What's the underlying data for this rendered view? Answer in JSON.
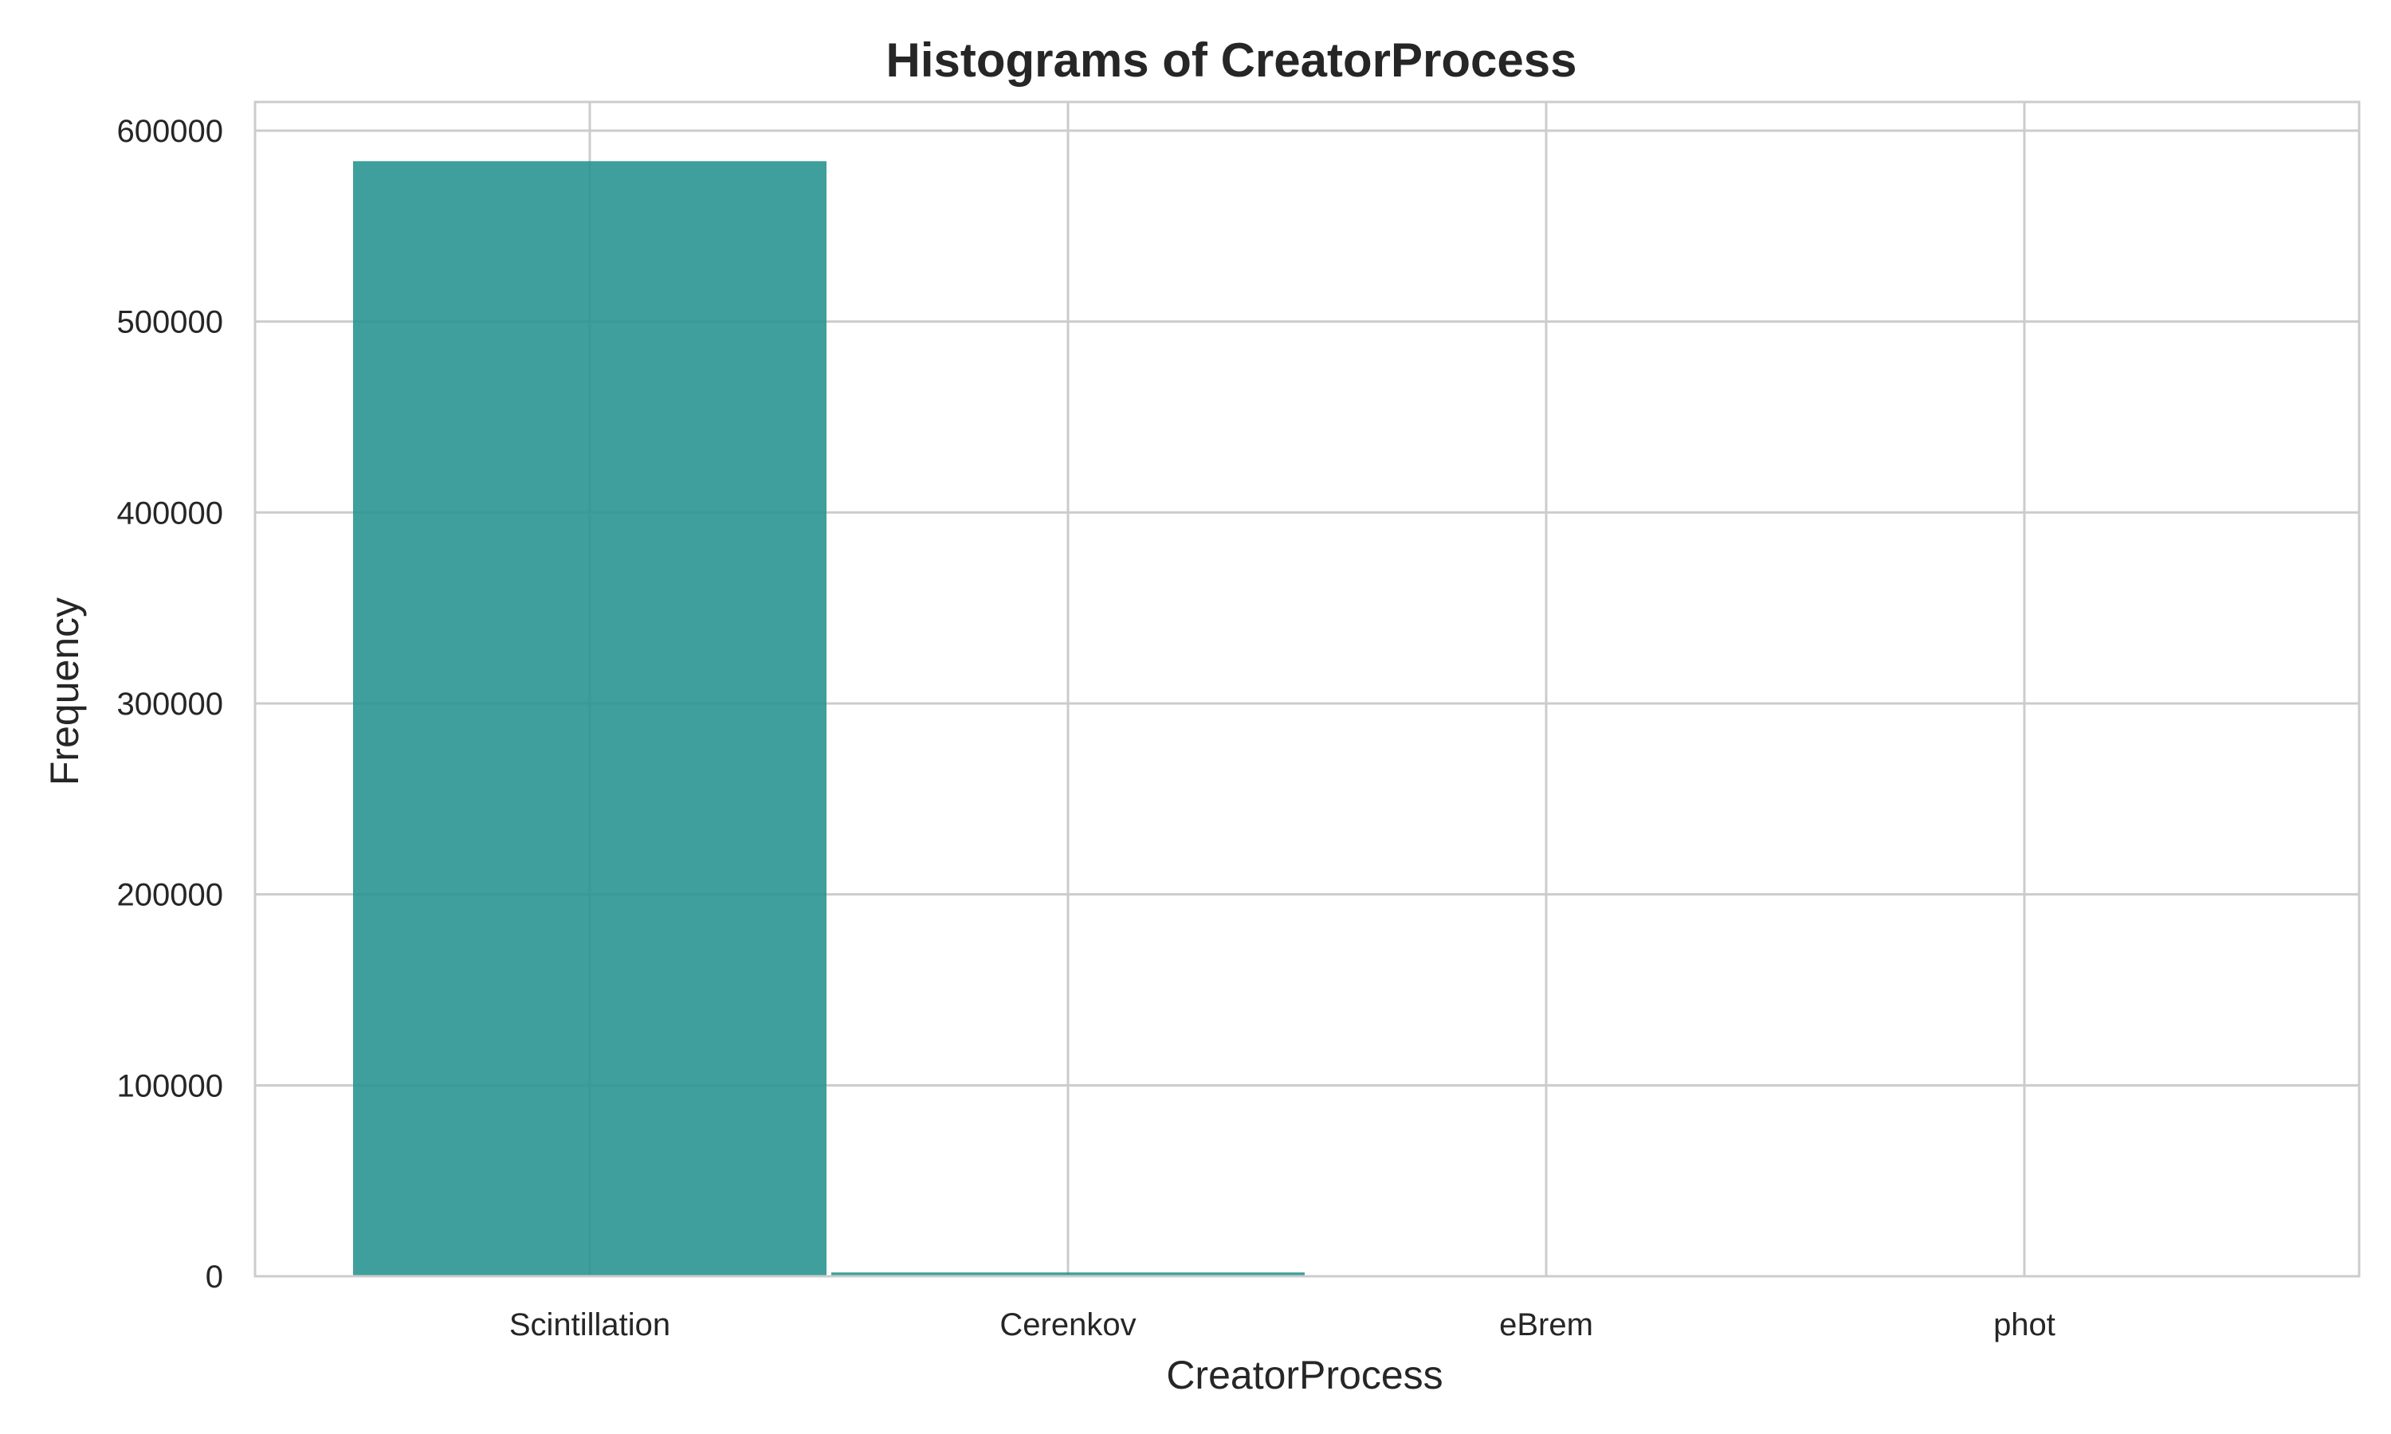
{
  "chart_data": {
    "type": "bar",
    "title": "Histograms of CreatorProcess",
    "xlabel": "CreatorProcess",
    "ylabel": "Frequency",
    "categories": [
      "Scintillation",
      "Cerenkov",
      "eBrem",
      "phot"
    ],
    "values": [
      584000,
      2000,
      0,
      0
    ],
    "ylim": [
      0,
      615000
    ],
    "yticks": [
      0,
      100000,
      200000,
      300000,
      400000,
      500000,
      600000
    ],
    "ytick_labels": [
      "0",
      "100000",
      "200000",
      "300000",
      "400000",
      "500000",
      "600000"
    ],
    "grid": true,
    "bar_color": "#2a9591"
  }
}
